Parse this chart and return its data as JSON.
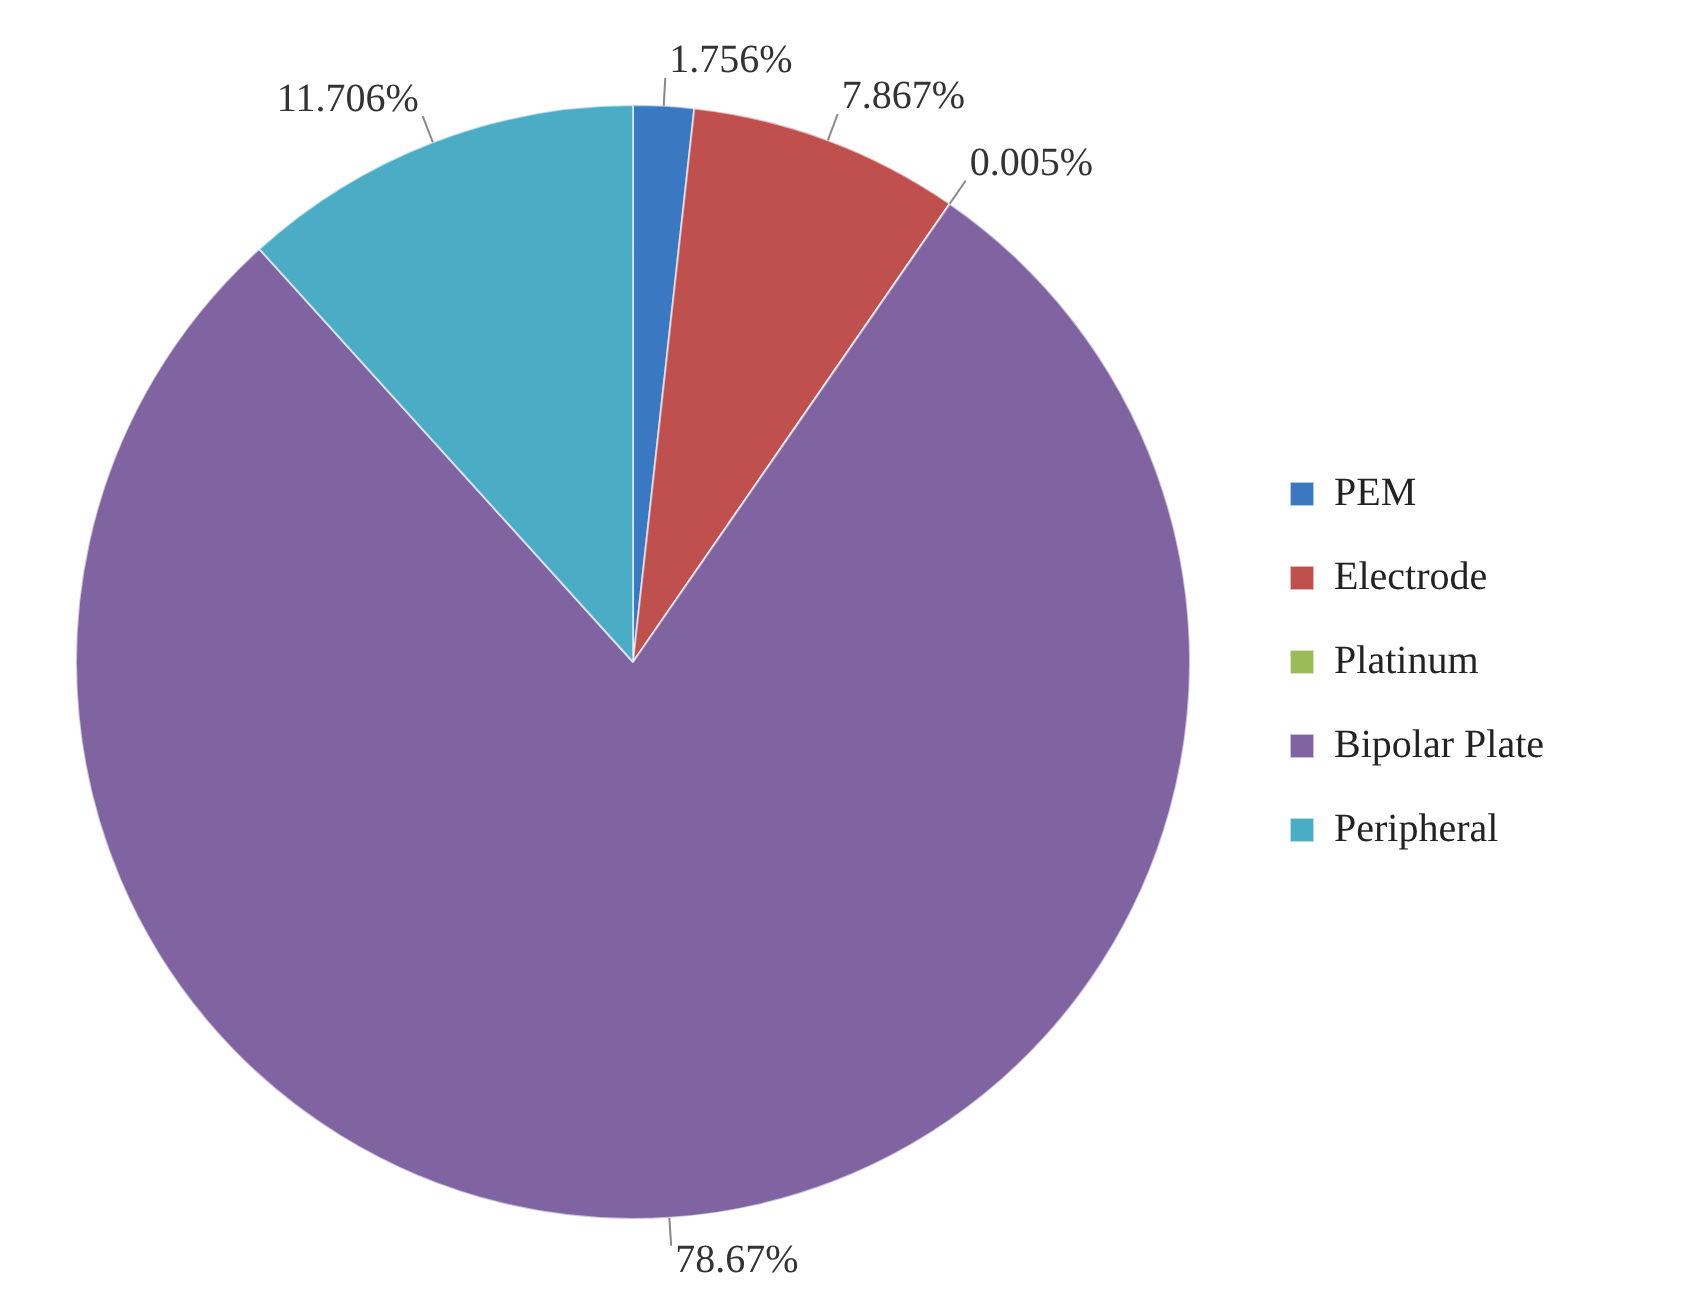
{
  "chart_data": {
    "type": "pie",
    "categories": [
      "PEM",
      "Electrode",
      "Platinum",
      "Bipolar Plate",
      "Peripheral"
    ],
    "values": [
      1.756,
      7.867,
      0.005,
      78.67,
      11.706
    ],
    "colors": [
      "#3b78c2",
      "#c0504d",
      "#9bbb59",
      "#8064a2",
      "#4bacc6"
    ],
    "value_labels": [
      "1.756%",
      "7.867%",
      "0.005%",
      "78.67%",
      "11.706%"
    ],
    "legend": "right"
  }
}
